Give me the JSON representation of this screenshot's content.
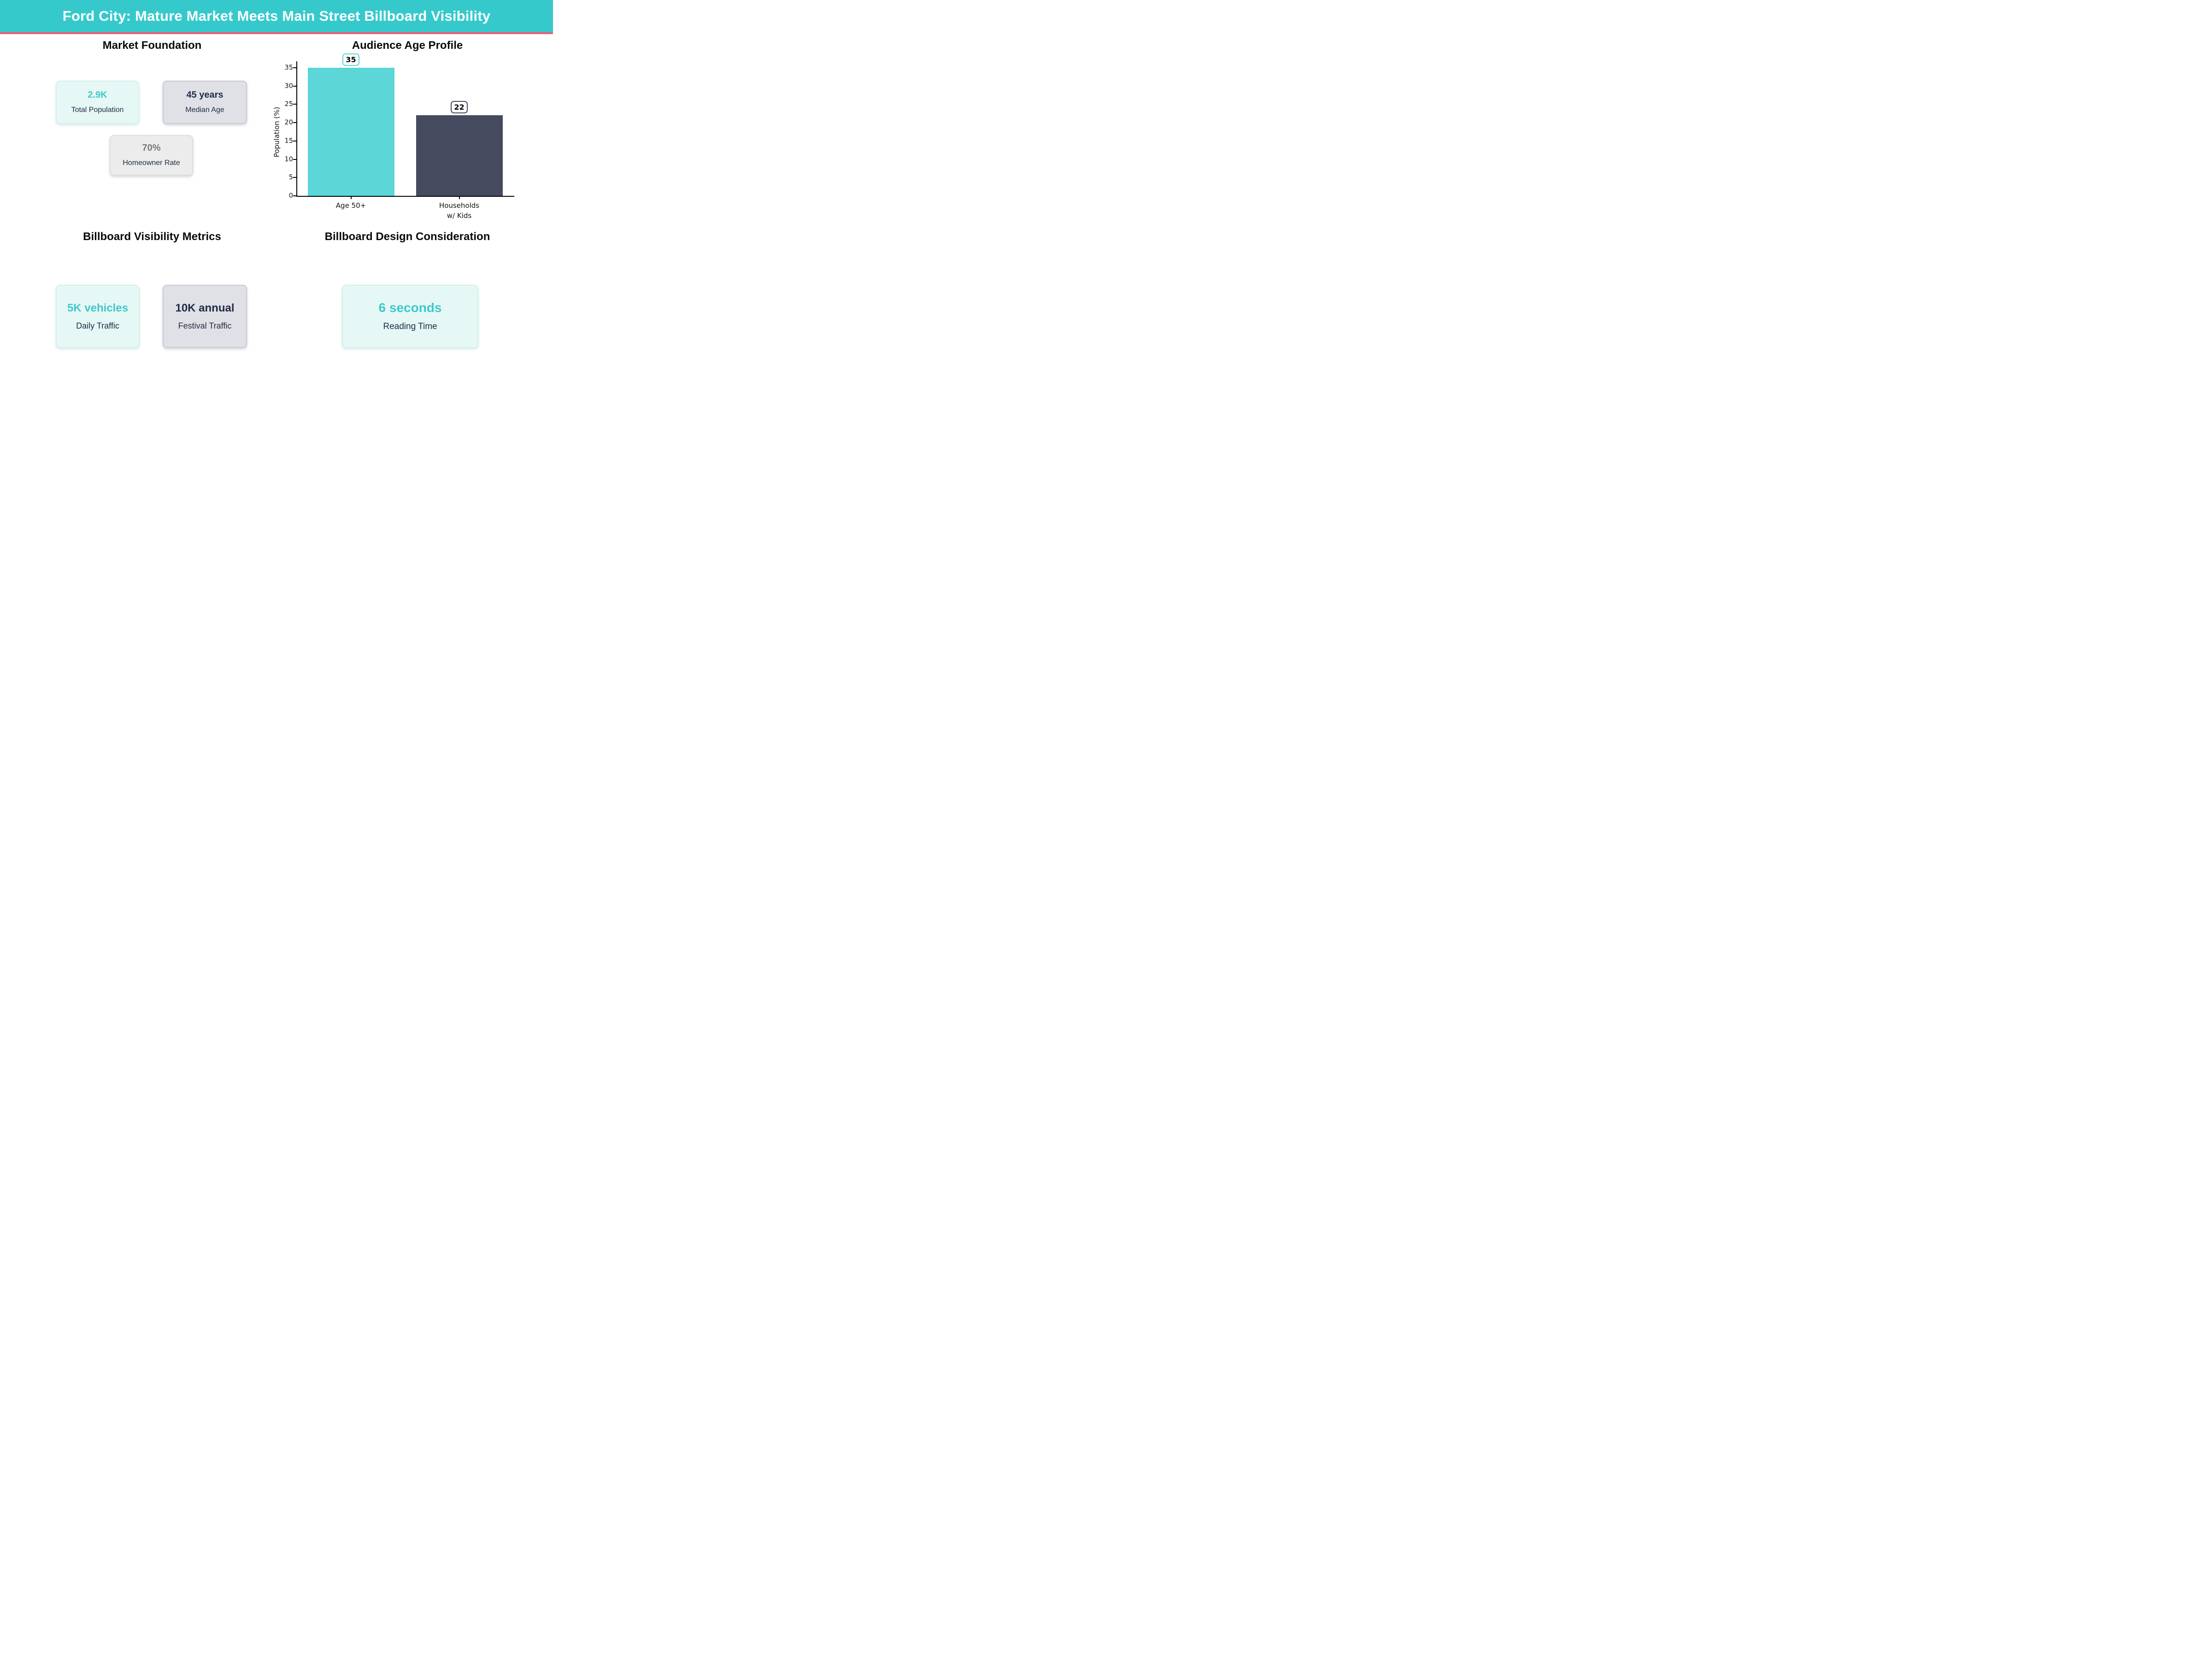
{
  "header": {
    "title": "Ford City: Mature Market Meets Main Street Billboard Visibility",
    "bg_color": "#36C9CC",
    "accent_line_color": "#F05A72",
    "text_color": "#ffffff"
  },
  "colors": {
    "accent_teal_text": "#3EC8CC",
    "navy_text": "#1F2A44",
    "gray_value_text": "#7A7A7C",
    "mint_card_bg": "#E6F8F5",
    "gray_card_bg": "#E0E1E6",
    "lightgray_card_bg": "#ECECEC",
    "bar_teal": "#5CD6D6",
    "bar_slate": "#454A5F"
  },
  "sections": {
    "market_foundation": {
      "title": "Market Foundation",
      "cards": [
        {
          "value": "2.9K",
          "label": "Total Population"
        },
        {
          "value": "45 years",
          "label": "Median Age"
        },
        {
          "value": "70%",
          "label": "Homeowner Rate"
        }
      ]
    },
    "age_profile": {
      "title": "Audience Age Profile"
    },
    "visibility_metrics": {
      "title": "Billboard Visibility Metrics",
      "cards": [
        {
          "value": "5K vehicles",
          "label": "Daily Traffic"
        },
        {
          "value": "10K annual",
          "label": "Festival Traffic"
        }
      ]
    },
    "design_consideration": {
      "title": "Billboard Design Consideration",
      "cards": [
        {
          "value": "6 seconds",
          "label": "Reading Time"
        }
      ]
    }
  },
  "chart_data": {
    "type": "bar",
    "title": "Audience Age Profile",
    "categories": [
      "Age 50+",
      "Households\nw/ Kids"
    ],
    "values": [
      35,
      22
    ],
    "data_labels": [
      "35",
      "22"
    ],
    "bar_colors": [
      "#5CD6D6",
      "#454A5F"
    ],
    "annotation_box_border_colors": [
      "#5CD6D6",
      "#454A5F"
    ],
    "xlabel": "",
    "ylabel": "Population (%)",
    "yticks": [
      0,
      5,
      10,
      15,
      20,
      25,
      30,
      35
    ],
    "ylim": [
      0,
      36.75
    ],
    "grid": false,
    "legend": false
  }
}
